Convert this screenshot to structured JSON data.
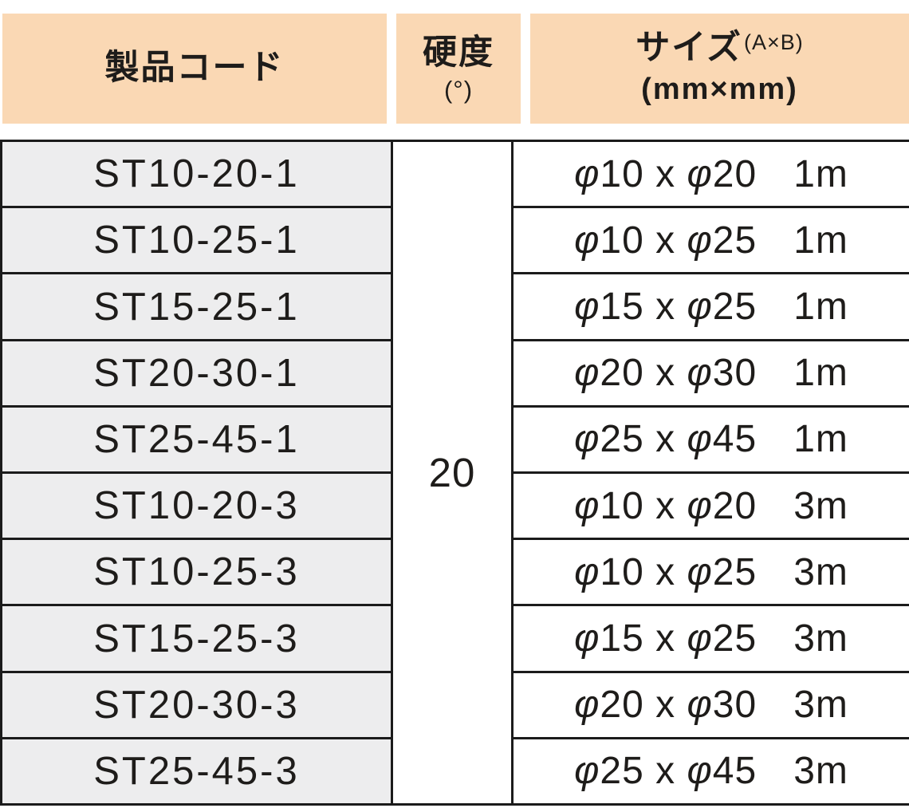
{
  "header": {
    "product_code": "製品コード",
    "hardness_title": "硬度",
    "hardness_unit": "(°)",
    "size_title": "サイズ",
    "size_annotation": "(A×B)",
    "size_unit": "(mm×mm)"
  },
  "table": {
    "hardness_value": "20",
    "rows": [
      {
        "code": "ST10-20-1",
        "size": "φ10 x φ20",
        "length": "1m"
      },
      {
        "code": "ST10-25-1",
        "size": "φ10 x φ25",
        "length": "1m"
      },
      {
        "code": "ST15-25-1",
        "size": "φ15 x φ25",
        "length": "1m"
      },
      {
        "code": "ST20-30-1",
        "size": "φ20 x φ30",
        "length": "1m"
      },
      {
        "code": "ST25-45-1",
        "size": "φ25 x φ45",
        "length": "1m"
      },
      {
        "code": "ST10-20-3",
        "size": "φ10 x φ20",
        "length": "3m"
      },
      {
        "code": "ST10-25-3",
        "size": "φ10 x φ25",
        "length": "3m"
      },
      {
        "code": "ST15-25-3",
        "size": "φ15 x φ25",
        "length": "3m"
      },
      {
        "code": "ST20-30-3",
        "size": "φ20 x φ30",
        "length": "3m"
      },
      {
        "code": "ST25-45-3",
        "size": "φ25 x φ45",
        "length": "3m"
      }
    ]
  },
  "colors": {
    "header_bg": "#FAD8B4",
    "row_bg": "#EDEDEE",
    "border": "#1B1B1B"
  }
}
